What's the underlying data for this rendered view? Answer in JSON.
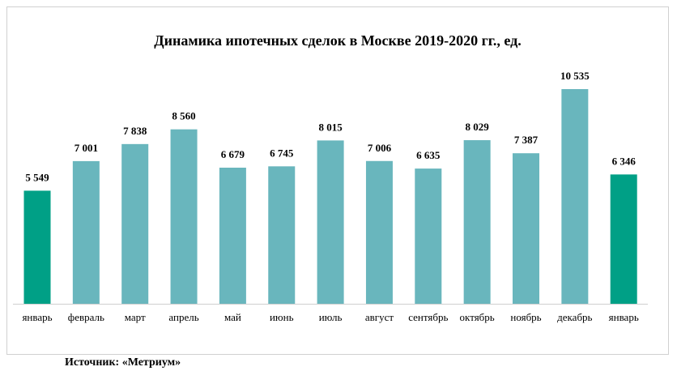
{
  "chart_data": {
    "type": "bar",
    "title": "Динамика ипотечных сделок в Москве 2019-2020 гг., ед.",
    "categories": [
      "январь",
      "февраль",
      "март",
      "апрель",
      "май",
      "июнь",
      "июль",
      "август",
      "сентябрь",
      "октябрь",
      "ноябрь",
      "декабрь",
      "январь"
    ],
    "values": [
      5549,
      7001,
      7838,
      8560,
      6679,
      6745,
      8015,
      7006,
      6635,
      8029,
      7387,
      10535,
      6346
    ],
    "value_labels": [
      "5 549",
      "7 001",
      "7 838",
      "8 560",
      "6 679",
      "6 745",
      "8 015",
      "7 006",
      "6 635",
      "8 029",
      "7 387",
      "10 535",
      "6 346"
    ],
    "colors": [
      "#00a086",
      "#69b6bd",
      "#69b6bd",
      "#69b6bd",
      "#69b6bd",
      "#69b6bd",
      "#69b6bd",
      "#69b6bd",
      "#69b6bd",
      "#69b6bd",
      "#69b6bd",
      "#69b6bd",
      "#00a086"
    ],
    "source": "Источник: «Метриум»"
  }
}
